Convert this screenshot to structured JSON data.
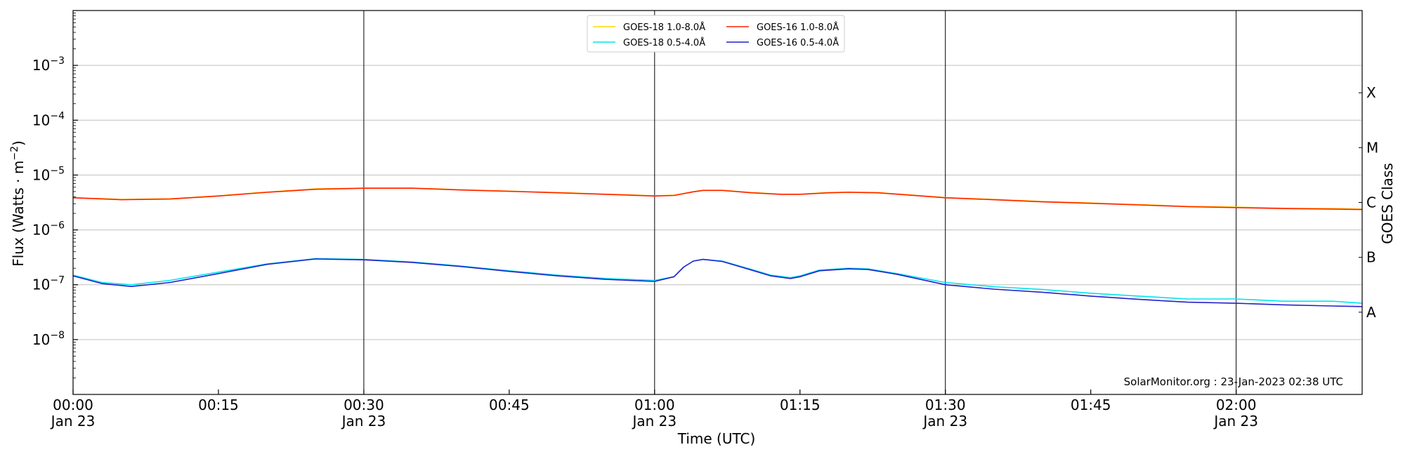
{
  "chart_data": {
    "type": "line",
    "xlabel": "Time (UTC)",
    "ylabel": "Flux (Watts · m",
    "ylabel_exp": "−2",
    "ylabel_close": ")",
    "y2label": "GOES Class",
    "yscale": "log",
    "xlim": [
      "2023-01-23T00:00",
      "2023-01-23T02:13"
    ],
    "ylim": [
      1e-09,
      0.01
    ],
    "grid": "horizontal at decades, vertical at half-hours",
    "legend_placement": "top-center",
    "annotation": "SolarMonitor.org : 23-Jan-2023 02:38 UTC",
    "y_ticks": [
      {
        "value": 0.001,
        "exp": "−3"
      },
      {
        "value": 0.0001,
        "exp": "−4"
      },
      {
        "value": 1e-05,
        "exp": "−5"
      },
      {
        "value": 1e-06,
        "exp": "−6"
      },
      {
        "value": 1e-07,
        "exp": "−7"
      },
      {
        "value": 1e-08,
        "exp": "−8"
      }
    ],
    "y_tick_base": "10",
    "x_ticks": [
      {
        "time": "00:00",
        "line1": "00:00",
        "line2": "Jan 23"
      },
      {
        "time": "00:15",
        "line1": "00:15",
        "line2": ""
      },
      {
        "time": "00:30",
        "line1": "00:30",
        "line2": "Jan 23"
      },
      {
        "time": "00:45",
        "line1": "00:45",
        "line2": ""
      },
      {
        "time": "01:00",
        "line1": "01:00",
        "line2": "Jan 23"
      },
      {
        "time": "01:15",
        "line1": "01:15",
        "line2": ""
      },
      {
        "time": "01:30",
        "line1": "01:30",
        "line2": "Jan 23"
      },
      {
        "time": "01:45",
        "line1": "01:45",
        "line2": ""
      },
      {
        "time": "02:00",
        "line1": "02:00",
        "line2": "Jan 23"
      }
    ],
    "classes": [
      {
        "label": "A",
        "value": 3.16e-08
      },
      {
        "label": "B",
        "value": 3.16e-07
      },
      {
        "label": "C",
        "value": 3.16e-06
      },
      {
        "label": "M",
        "value": 3.16e-05
      },
      {
        "label": "X",
        "value": 0.000316
      }
    ],
    "series": [
      {
        "name": "GOES-18 1.0-8.0",
        "color": "#ffd700",
        "x": [
          "00:00",
          "00:05",
          "00:10",
          "00:15",
          "00:20",
          "00:25",
          "00:30",
          "00:35",
          "00:40",
          "00:45",
          "00:50",
          "00:55",
          "01:00",
          "01:02",
          "01:04",
          "01:05",
          "01:07",
          "01:10",
          "01:13",
          "01:15",
          "01:18",
          "01:20",
          "01:23",
          "01:26",
          "01:30",
          "01:35",
          "01:40",
          "01:45",
          "01:50",
          "01:55",
          "02:00",
          "02:05",
          "02:10",
          "02:13"
        ],
        "values": [
          3.9e-06,
          3.6e-06,
          3.7e-06,
          4.2e-06,
          4.9e-06,
          5.6e-06,
          5.8e-06,
          5.8e-06,
          5.4e-06,
          5.1e-06,
          4.8e-06,
          4.5e-06,
          4.2e-06,
          4.3e-06,
          5e-06,
          5.3e-06,
          5.3e-06,
          4.8e-06,
          4.5e-06,
          4.5e-06,
          4.8e-06,
          4.9e-06,
          4.8e-06,
          4.4e-06,
          3.9e-06,
          3.6e-06,
          3.3e-06,
          3.1e-06,
          2.9e-06,
          2.7e-06,
          2.6e-06,
          2.5e-06,
          2.45e-06,
          2.4e-06
        ]
      },
      {
        "name": "GOES-18 0.5-4.0",
        "color": "#00e5ee",
        "x": [
          "00:00",
          "00:03",
          "00:06",
          "00:10",
          "00:15",
          "00:20",
          "00:25",
          "00:30",
          "00:35",
          "00:40",
          "00:45",
          "00:50",
          "00:55",
          "01:00",
          "01:02",
          "01:03",
          "01:04",
          "01:05",
          "01:07",
          "01:10",
          "01:12",
          "01:14",
          "01:15",
          "01:17",
          "01:20",
          "01:22",
          "01:25",
          "01:30",
          "01:35",
          "01:40",
          "01:45",
          "01:50",
          "01:55",
          "02:00",
          "02:05",
          "02:10",
          "02:13"
        ],
        "values": [
          1.5e-07,
          1.1e-07,
          1e-07,
          1.2e-07,
          1.7e-07,
          2.4e-07,
          3e-07,
          2.9e-07,
          2.6e-07,
          2.2e-07,
          1.8e-07,
          1.5e-07,
          1.3e-07,
          1.2e-07,
          1.4e-07,
          2.1e-07,
          2.7e-07,
          2.9e-07,
          2.7e-07,
          1.9e-07,
          1.5e-07,
          1.35e-07,
          1.45e-07,
          1.85e-07,
          2e-07,
          1.95e-07,
          1.6e-07,
          1.1e-07,
          9.2e-08,
          8.2e-08,
          7e-08,
          6.2e-08,
          5.5e-08,
          5.5e-08,
          5e-08,
          5e-08,
          4.6e-08
        ]
      },
      {
        "name": "GOES-16 1.0-8.0",
        "color": "#ff2200",
        "x": [
          "00:00",
          "00:05",
          "00:10",
          "00:15",
          "00:20",
          "00:25",
          "00:30",
          "00:35",
          "00:40",
          "00:45",
          "00:50",
          "00:55",
          "01:00",
          "01:02",
          "01:04",
          "01:05",
          "01:07",
          "01:10",
          "01:13",
          "01:15",
          "01:18",
          "01:20",
          "01:23",
          "01:26",
          "01:30",
          "01:35",
          "01:40",
          "01:45",
          "01:50",
          "01:55",
          "02:00",
          "02:05",
          "02:10",
          "02:13"
        ],
        "values": [
          3.85e-06,
          3.55e-06,
          3.65e-06,
          4.15e-06,
          4.85e-06,
          5.5e-06,
          5.75e-06,
          5.75e-06,
          5.35e-06,
          5.05e-06,
          4.75e-06,
          4.45e-06,
          4.15e-06,
          4.25e-06,
          4.95e-06,
          5.25e-06,
          5.25e-06,
          4.75e-06,
          4.45e-06,
          4.45e-06,
          4.75e-06,
          4.85e-06,
          4.75e-06,
          4.35e-06,
          3.85e-06,
          3.55e-06,
          3.25e-06,
          3.05e-06,
          2.85e-06,
          2.65e-06,
          2.55e-06,
          2.45e-06,
          2.4e-06,
          2.35e-06
        ]
      },
      {
        "name": "GOES-16 0.5-4.0",
        "color": "#2222cc",
        "x": [
          "00:00",
          "00:03",
          "00:06",
          "00:10",
          "00:15",
          "00:20",
          "00:25",
          "00:30",
          "00:35",
          "00:40",
          "00:45",
          "00:50",
          "00:55",
          "01:00",
          "01:02",
          "01:03",
          "01:04",
          "01:05",
          "01:07",
          "01:10",
          "01:12",
          "01:14",
          "01:15",
          "01:17",
          "01:20",
          "01:22",
          "01:25",
          "01:30",
          "01:35",
          "01:40",
          "01:45",
          "01:50",
          "01:55",
          "02:00",
          "02:05",
          "02:10",
          "02:13"
        ],
        "values": [
          1.45e-07,
          1.05e-07,
          9.3e-08,
          1.1e-07,
          1.6e-07,
          2.35e-07,
          2.95e-07,
          2.85e-07,
          2.55e-07,
          2.15e-07,
          1.75e-07,
          1.45e-07,
          1.25e-07,
          1.15e-07,
          1.4e-07,
          2.1e-07,
          2.7e-07,
          2.9e-07,
          2.65e-07,
          1.85e-07,
          1.45e-07,
          1.3e-07,
          1.4e-07,
          1.8e-07,
          1.95e-07,
          1.9e-07,
          1.55e-07,
          1e-07,
          8.3e-08,
          7.3e-08,
          6.2e-08,
          5.4e-08,
          4.8e-08,
          4.6e-08,
          4.3e-08,
          4.1e-08,
          4e-08
        ]
      }
    ],
    "legend": [
      {
        "series": 0,
        "text": "GOES-18 1.0-8.0",
        "unit": "Å"
      },
      {
        "series": 1,
        "text": "GOES-18 0.5-4.0",
        "unit": "Å"
      },
      {
        "series": 2,
        "text": "GOES-16 1.0-8.0",
        "unit": "Å"
      },
      {
        "series": 3,
        "text": "GOES-16 0.5-4.0",
        "unit": "Å"
      }
    ]
  }
}
